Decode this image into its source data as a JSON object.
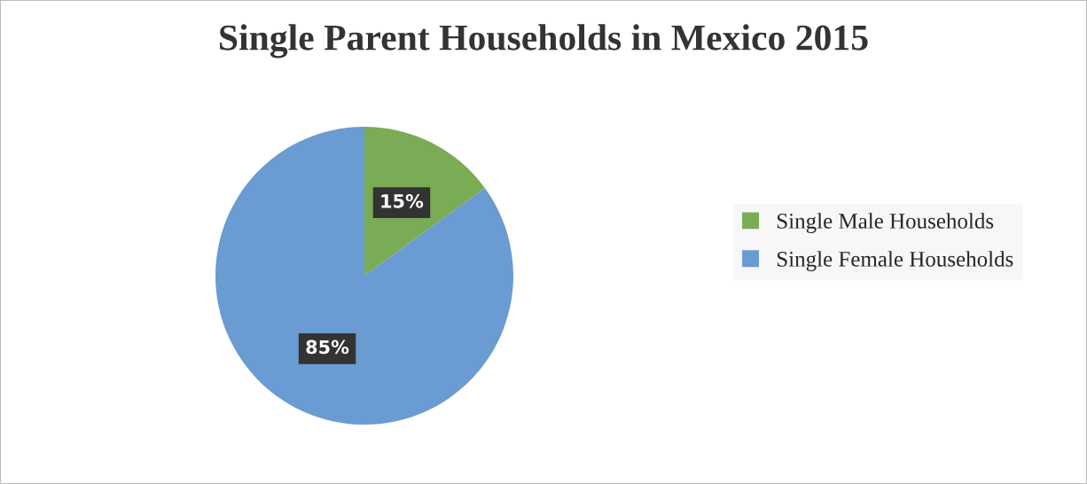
{
  "chart_data": {
    "type": "pie",
    "title": "Single Parent Households in Mexico 2015",
    "categories": [
      "Single Male Households",
      "Single Female Households"
    ],
    "values": [
      15,
      85
    ],
    "colors": [
      "#7aab55",
      "#6a9bd2"
    ],
    "value_labels": [
      "15%",
      "85%"
    ],
    "legend": "right"
  }
}
